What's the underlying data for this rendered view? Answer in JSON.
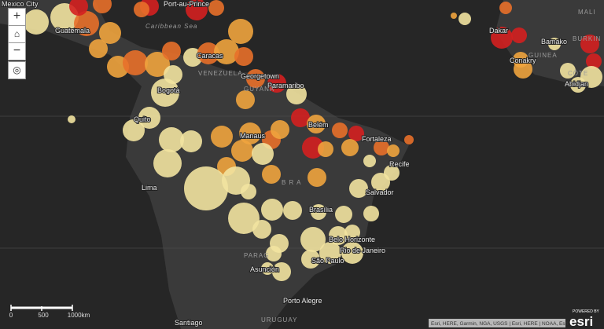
{
  "map": {
    "places": [
      "Mexico City",
      "Port-au-Prince",
      "Guatemala",
      "Caribbean Sea",
      "Caracas",
      "VENEZUELA",
      "Georgetown",
      "Paramaribo",
      "GUYANA",
      "Bogotá",
      "Quito",
      "Belém",
      "Manaus",
      "Fortaleza",
      "Recife",
      "Lima",
      "B R A",
      "Salvador",
      "Brasília",
      "Belo Horizonte",
      "Rio de Janeiro",
      "São Paulo",
      "PARAG",
      "Asunción",
      "Porto Alegre",
      "Santiago",
      "URUGUAY",
      "Dakar",
      "Bamako",
      "MALI",
      "GUINEA",
      "Conakry",
      "Abidjan",
      "CÔTE",
      "BURKIN"
    ],
    "scale": {
      "labels": [
        "0",
        "500",
        "1000km"
      ]
    },
    "attribution": "Esri, HERE, Garmin, NGA, USGS | Esri, HERE | NOAA, Esri",
    "logo": {
      "powered": "POWERED BY",
      "brand": "esri"
    }
  }
}
